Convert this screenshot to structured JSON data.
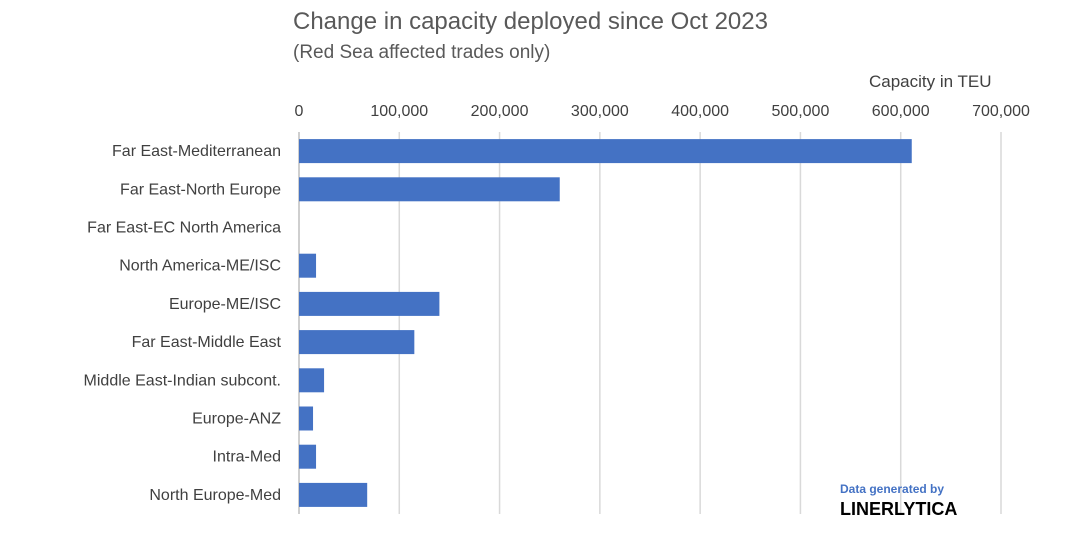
{
  "chart_data": {
    "type": "bar",
    "orientation": "horizontal",
    "title": "Change in capacity deployed since Oct 2023",
    "subtitle": "(Red Sea affected trades only)",
    "xlabel": "Capacity in TEU",
    "ylabel": "",
    "xlim": [
      0,
      700000
    ],
    "xticks": [
      0,
      100000,
      200000,
      300000,
      400000,
      500000,
      600000,
      700000
    ],
    "xtick_labels": [
      "0",
      "100,000",
      "200,000",
      "300,000",
      "400,000",
      "500,000",
      "600,000",
      "700,000"
    ],
    "x_axis_position": "top",
    "grid": true,
    "categories": [
      "Far East-Mediterranean",
      "Far East-North Europe",
      "Far East-EC North America",
      "North America-ME/ISC",
      "Europe-ME/ISC",
      "Far East-Middle East",
      "Middle East-Indian subcont.",
      "Europe-ANZ",
      "Intra-Med",
      "North Europe-Med"
    ],
    "values": [
      611000,
      260000,
      0,
      17000,
      140000,
      115000,
      25000,
      14000,
      17000,
      68000
    ],
    "bar_color": "#4472C4"
  },
  "credit": {
    "line1": "Data generated by",
    "line2": "LINERLYTICA"
  },
  "colors": {
    "bar": "#4472C4",
    "grid": "#D9D9D9",
    "text": "#404040",
    "title": "#595959"
  }
}
